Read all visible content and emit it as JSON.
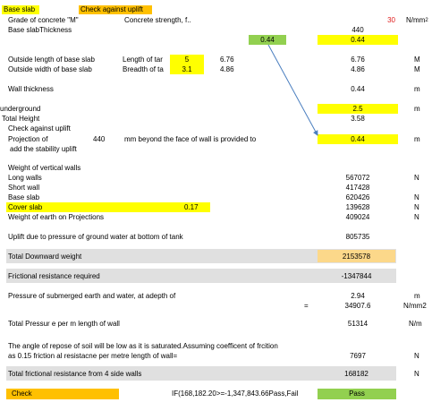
{
  "header": {
    "base_slab": "Base slab",
    "check_uplift": "Check against uplift"
  },
  "rows": {
    "grade_label": "Grade of concrete  \"M\"",
    "strength_label": "Concrete strength, f..",
    "strength_value": "30",
    "strength_unit": "N/mm",
    "strength_unit_sup": "2",
    "thickness_label": "Base slabThickness",
    "thickness_value_top": "440",
    "thickness_green": "0.44",
    "thickness_yellow": "0.44",
    "outside_length_label": "Outside  length of base slab",
    "length_tank_label": "Length of tar",
    "length_tank_value": "5",
    "length_tank_value2": "6.76",
    "outside_length_value": "6.76",
    "outside_length_unit": "M",
    "outside_width_label": "Outside width of base slab",
    "breadth_tank_label": "Breadth of ta",
    "breadth_tank_value": "3.1",
    "breadth_tank_value2": "4.86",
    "outside_width_value": "4.86",
    "outside_width_unit": "M",
    "wall_thickness_label": "Wall thickness",
    "wall_thickness_value": "0.44",
    "wall_thickness_unit": "m",
    "underground_label": "underground",
    "underground_value": "2.5",
    "underground_unit": "m",
    "total_height_label": "Total Height",
    "total_height_value": "3.58",
    "check_uplift_label": "Check against uplift",
    "projection_label": "Projection of",
    "projection_mm": "440",
    "projection_desc": "mm beyond the face of wall is provided to",
    "projection_value": "0.44",
    "projection_unit": "m",
    "stability_label": "add the stability uplift",
    "weight_vertical_label": "Weight of vertical walls",
    "long_walls_label": "Long walls",
    "long_walls_value": "567072",
    "long_walls_unit": "N",
    "short_wall_label": "Short wall",
    "short_wall_value": "417428",
    "base_slab_label": "Base slab",
    "base_slab_value": "620426",
    "base_slab_unit": "N",
    "cover_slab_label": "Cover slab",
    "cover_slab_mid": "0.17",
    "cover_slab_value": "139628",
    "cover_slab_unit": "N",
    "weight_earth_label": "Weight of earth on Projections",
    "weight_earth_value": "409024",
    "weight_earth_unit": "N",
    "uplift_label": "Uplift due to pressure of ground water at bottom of tank",
    "uplift_value": "805735",
    "downward_label": "Total Downward weight",
    "downward_value": "2153578",
    "friction_req_label": "Frictional resistance required",
    "friction_req_value": "-1347844",
    "pressure_label": "Pressure of submerged earth and water, at adepth of",
    "pressure_eq": "=",
    "pressure_depth": "2.94",
    "pressure_depth_unit": "m",
    "pressure_value": "34907.6",
    "pressure_unit": "N/mm2",
    "total_pressure_label": "Total Pressur e per m length of wall",
    "total_pressure_value": "51314",
    "total_pressure_unit": "N/m",
    "angle_line1": "The angle of repose of soil will be low as it is saturated.Assuming coefficent of frcition",
    "angle_line2": "as 0.15 friction al resistacne per metre length of wall=",
    "angle_value": "7697",
    "angle_unit": "N",
    "total_friction_label": "Total frictional resistance from 4 side walls",
    "total_friction_value": "168182",
    "total_friction_unit": "N",
    "check_label": "Check",
    "formula_text": "IF(168,182.20>=-1,347,843.66Pass,Fail",
    "result_value": "Pass"
  },
  "colors": {
    "yellow": "#ffff00",
    "orange": "#ffc000",
    "green": "#92d050",
    "peach": "#fcd88a",
    "grey": "#e0e0e0",
    "red": "#e02020",
    "arrow": "#4a7ebf"
  }
}
